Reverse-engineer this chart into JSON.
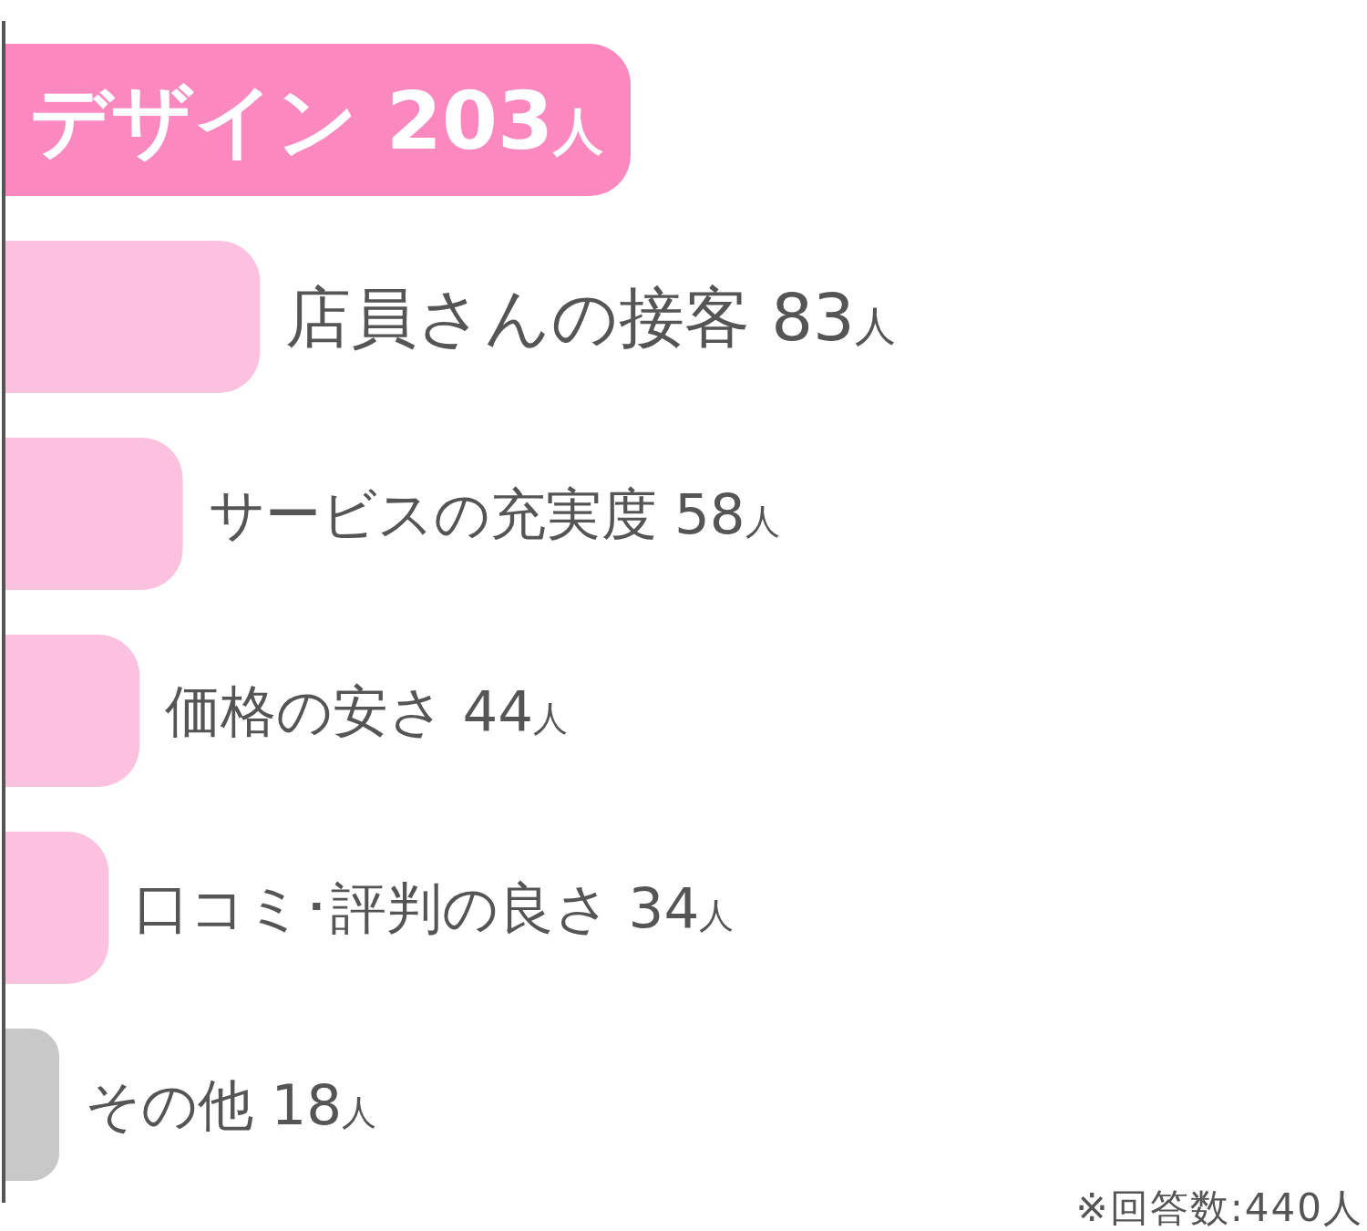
{
  "chart_data": {
    "type": "bar",
    "orientation": "horizontal",
    "categories": [
      null,
      null,
      null,
      null,
      null,
      null
    ],
    "values": [
      203,
      83,
      58,
      44,
      34,
      18
    ],
    "colors": [
      "#fc88c0",
      "#fdc1e0",
      "#fdc1e0",
      "#fdc1e0",
      "#fdc1e0",
      "#c8c8c8"
    ],
    "value_labels": [
      "デザイン 203人",
      "店員さんの接客 83人",
      "サービスの充実度 58人",
      "価格の安さ 44人",
      "口コミ･評判の良さ 34人",
      "その他 18人"
    ],
    "annotations": [
      "※回答数:440人"
    ]
  }
}
